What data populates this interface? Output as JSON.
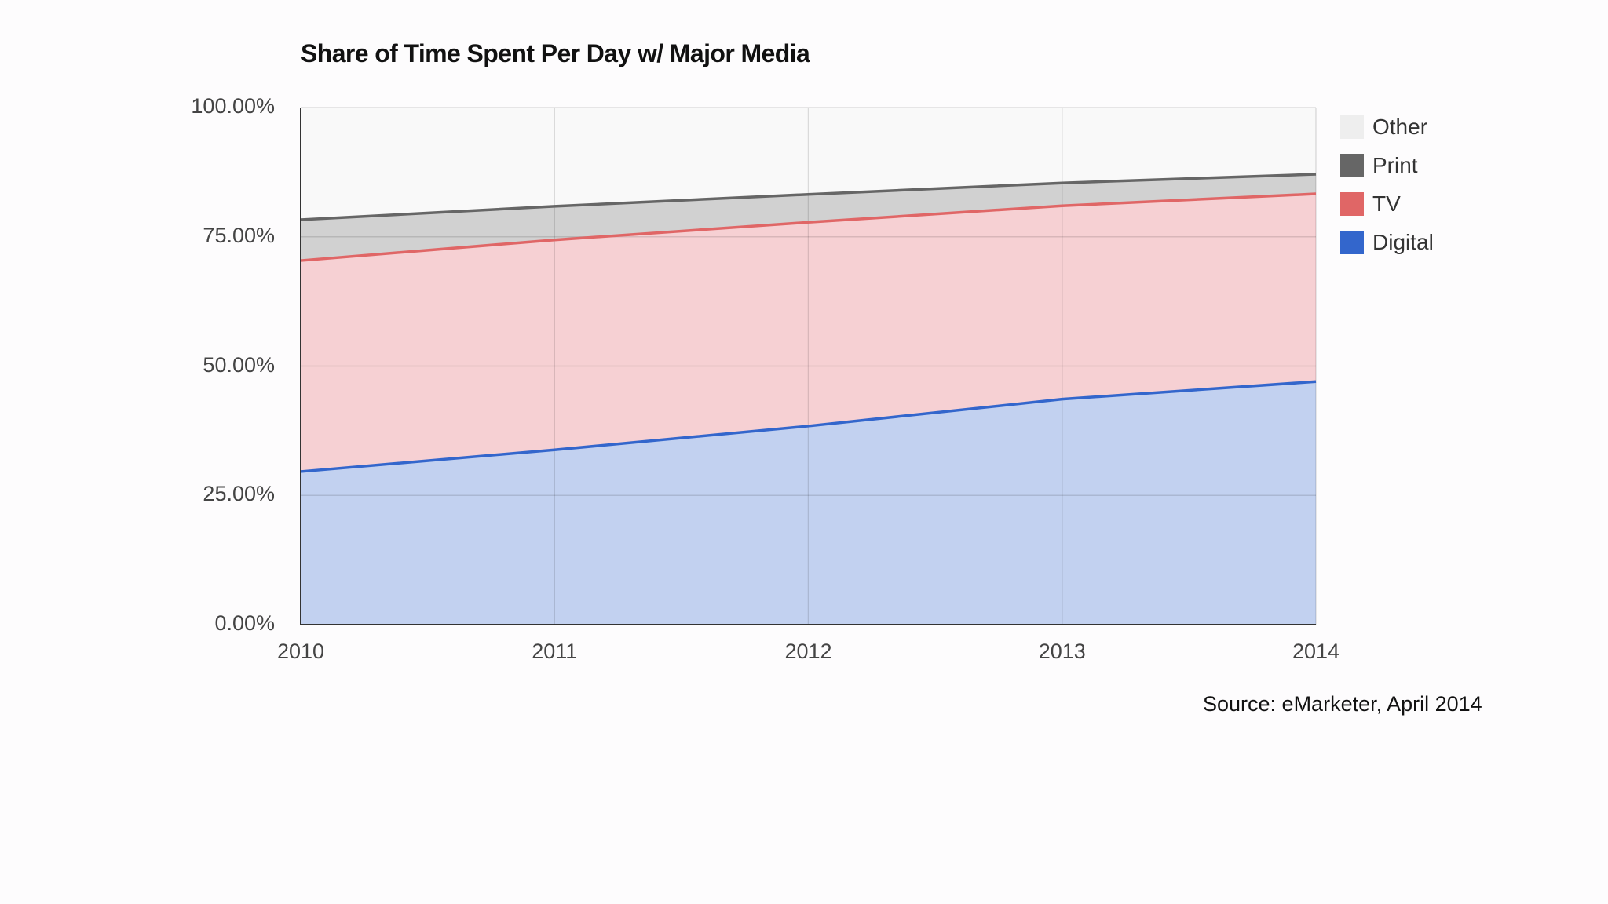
{
  "chart_data": {
    "type": "area",
    "stacked": true,
    "title": "Share of Time Spent Per Day w/ Major Media",
    "xlabel": "",
    "ylabel": "",
    "categories": [
      "2010",
      "2011",
      "2012",
      "2013",
      "2014"
    ],
    "ylim": [
      0,
      100
    ],
    "y_ticks": [
      "0.00%",
      "25.00%",
      "50.00%",
      "75.00%",
      "100.00%"
    ],
    "y_tick_values": [
      0,
      25,
      50,
      75,
      100
    ],
    "grid": true,
    "legend_position": "right",
    "series": [
      {
        "name": "Digital",
        "color": "#3366cc",
        "fill": "#c2d1f0",
        "values": [
          29.6,
          33.8,
          38.4,
          43.6,
          47.0
        ]
      },
      {
        "name": "TV",
        "color": "#e06666",
        "fill": "#f6d0d3",
        "values": [
          40.8,
          40.6,
          39.4,
          37.4,
          36.3
        ]
      },
      {
        "name": "Print",
        "color": "#666666",
        "fill": "#d1d1d1",
        "values": [
          7.9,
          6.5,
          5.4,
          4.4,
          3.8
        ]
      },
      {
        "name": "Other",
        "color": "#eeeeee",
        "fill": "#f9f9f9",
        "values": [
          21.7,
          19.1,
          16.8,
          14.6,
          12.9
        ]
      }
    ],
    "legend_order": [
      "Other",
      "Print",
      "TV",
      "Digital"
    ],
    "source": "Source: eMarketer, April 2014"
  },
  "title": "Share of Time Spent Per Day w/ Major Media",
  "source": "Source: eMarketer, April 2014",
  "legend": [
    {
      "label": "Other",
      "color": "#eeeeee"
    },
    {
      "label": "Print",
      "color": "#666666"
    },
    {
      "label": "TV",
      "color": "#e06666"
    },
    {
      "label": "Digital",
      "color": "#3366cc"
    }
  ],
  "colors": {
    "background": "#fdfcfd",
    "axis": "#333333",
    "gridline": "#cccccc",
    "plot_background": "#f9f9f9"
  }
}
